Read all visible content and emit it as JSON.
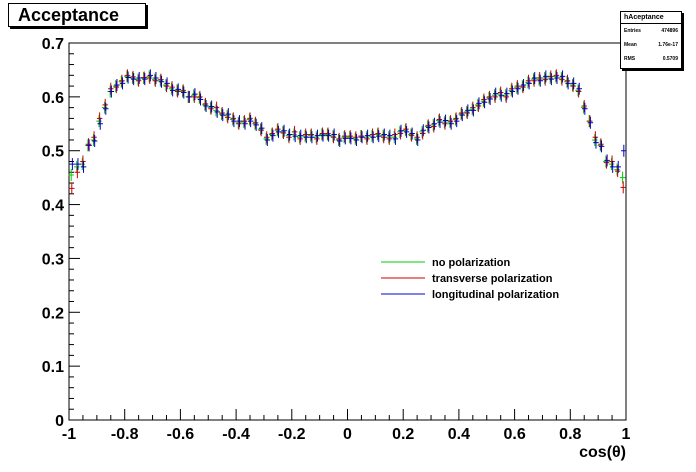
{
  "chart_data": {
    "type": "scatter",
    "title": "Acceptance",
    "xlabel": "cos(θ)",
    "ylabel": "",
    "xlim": [
      -1,
      1
    ],
    "ylim": [
      0,
      0.7
    ],
    "xticks": [
      "-1",
      "-0.8",
      "-0.6",
      "-0.4",
      "-0.2",
      "0",
      "0.2",
      "0.4",
      "0.6",
      "0.8",
      "1"
    ],
    "yticks": [
      "0",
      "0.1",
      "0.2",
      "0.3",
      "0.4",
      "0.5",
      "0.6",
      "0.7"
    ],
    "grid": false,
    "legend_position": "center-right",
    "bins": 100,
    "stats": {
      "name": "hAceptance",
      "rows": [
        {
          "label": "Entries",
          "value": "474896"
        },
        {
          "label": "Mean",
          "value": "1.76e-17"
        },
        {
          "label": "RMS",
          "value": "0.5709"
        }
      ]
    },
    "x": [
      -0.99,
      -0.97,
      -0.95,
      -0.93,
      -0.91,
      -0.89,
      -0.87,
      -0.85,
      -0.83,
      -0.81,
      -0.79,
      -0.77,
      -0.75,
      -0.73,
      -0.71,
      -0.69,
      -0.67,
      -0.65,
      -0.63,
      -0.61,
      -0.59,
      -0.57,
      -0.55,
      -0.53,
      -0.51,
      -0.49,
      -0.47,
      -0.45,
      -0.43,
      -0.41,
      -0.39,
      -0.37,
      -0.35,
      -0.33,
      -0.31,
      -0.29,
      -0.27,
      -0.25,
      -0.23,
      -0.21,
      -0.19,
      -0.17,
      -0.15,
      -0.13,
      -0.11,
      -0.09,
      -0.07,
      -0.05,
      -0.03,
      -0.01,
      0.01,
      0.03,
      0.05,
      0.07,
      0.09,
      0.11,
      0.13,
      0.15,
      0.17,
      0.19,
      0.21,
      0.23,
      0.25,
      0.27,
      0.29,
      0.31,
      0.33,
      0.35,
      0.37,
      0.39,
      0.41,
      0.43,
      0.45,
      0.47,
      0.49,
      0.51,
      0.53,
      0.55,
      0.57,
      0.59,
      0.61,
      0.63,
      0.65,
      0.67,
      0.69,
      0.71,
      0.73,
      0.75,
      0.77,
      0.79,
      0.81,
      0.83,
      0.85,
      0.87,
      0.89,
      0.91,
      0.93,
      0.95,
      0.97,
      0.99
    ],
    "series": [
      {
        "name": "no polarization",
        "color": "#00cc00",
        "values": [
          0.455,
          0.47,
          0.475,
          0.51,
          0.52,
          0.555,
          0.58,
          0.61,
          0.62,
          0.628,
          0.638,
          0.635,
          0.632,
          0.635,
          0.638,
          0.632,
          0.63,
          0.622,
          0.615,
          0.612,
          0.61,
          0.6,
          0.603,
          0.598,
          0.585,
          0.58,
          0.575,
          0.568,
          0.565,
          0.558,
          0.552,
          0.553,
          0.558,
          0.55,
          0.54,
          0.522,
          0.53,
          0.538,
          0.535,
          0.528,
          0.53,
          0.525,
          0.527,
          0.528,
          0.525,
          0.53,
          0.53,
          0.527,
          0.52,
          0.525,
          0.525,
          0.522,
          0.527,
          0.525,
          0.527,
          0.53,
          0.528,
          0.525,
          0.525,
          0.535,
          0.538,
          0.53,
          0.522,
          0.535,
          0.545,
          0.548,
          0.556,
          0.553,
          0.553,
          0.558,
          0.568,
          0.572,
          0.577,
          0.585,
          0.592,
          0.598,
          0.603,
          0.605,
          0.603,
          0.612,
          0.617,
          0.62,
          0.627,
          0.633,
          0.632,
          0.635,
          0.635,
          0.638,
          0.635,
          0.628,
          0.622,
          0.612,
          0.58,
          0.555,
          0.52,
          0.51,
          0.48,
          0.475,
          0.465,
          0.45
        ]
      },
      {
        "name": "transverse polarization",
        "color": "#cc0000",
        "values": [
          0.43,
          0.46,
          0.48,
          0.512,
          0.525,
          0.56,
          0.585,
          0.615,
          0.618,
          0.63,
          0.64,
          0.637,
          0.63,
          0.636,
          0.635,
          0.63,
          0.632,
          0.62,
          0.618,
          0.61,
          0.612,
          0.6,
          0.6,
          0.6,
          0.587,
          0.578,
          0.58,
          0.57,
          0.562,
          0.56,
          0.55,
          0.555,
          0.56,
          0.552,
          0.538,
          0.525,
          0.532,
          0.54,
          0.533,
          0.525,
          0.535,
          0.522,
          0.53,
          0.53,
          0.522,
          0.532,
          0.532,
          0.525,
          0.522,
          0.527,
          0.527,
          0.525,
          0.527,
          0.522,
          0.53,
          0.532,
          0.525,
          0.522,
          0.53,
          0.532,
          0.54,
          0.528,
          0.525,
          0.532,
          0.547,
          0.545,
          0.558,
          0.55,
          0.555,
          0.56,
          0.57,
          0.57,
          0.58,
          0.583,
          0.595,
          0.6,
          0.6,
          0.608,
          0.6,
          0.615,
          0.62,
          0.618,
          0.63,
          0.63,
          0.635,
          0.632,
          0.638,
          0.64,
          0.632,
          0.63,
          0.62,
          0.61,
          0.583,
          0.555,
          0.525,
          0.512,
          0.478,
          0.48,
          0.462,
          0.432
        ]
      },
      {
        "name": "longitudinal polarization",
        "color": "#0000cc",
        "values": [
          0.475,
          0.475,
          0.47,
          0.51,
          0.518,
          0.55,
          0.578,
          0.61,
          0.622,
          0.625,
          0.636,
          0.633,
          0.635,
          0.633,
          0.64,
          0.635,
          0.628,
          0.625,
          0.612,
          0.614,
          0.608,
          0.6,
          0.605,
          0.595,
          0.583,
          0.582,
          0.572,
          0.566,
          0.568,
          0.555,
          0.555,
          0.55,
          0.555,
          0.548,
          0.542,
          0.52,
          0.528,
          0.535,
          0.537,
          0.53,
          0.527,
          0.528,
          0.525,
          0.525,
          0.528,
          0.528,
          0.528,
          0.53,
          0.518,
          0.523,
          0.523,
          0.52,
          0.525,
          0.528,
          0.525,
          0.527,
          0.53,
          0.528,
          0.522,
          0.537,
          0.535,
          0.532,
          0.52,
          0.538,
          0.543,
          0.55,
          0.553,
          0.556,
          0.55,
          0.555,
          0.566,
          0.575,
          0.575,
          0.588,
          0.59,
          0.596,
          0.606,
          0.602,
          0.606,
          0.61,
          0.615,
          0.622,
          0.625,
          0.635,
          0.63,
          0.638,
          0.633,
          0.635,
          0.638,
          0.625,
          0.625,
          0.615,
          0.578,
          0.552,
          0.515,
          0.508,
          0.482,
          0.47,
          0.47,
          0.5
        ]
      }
    ]
  }
}
